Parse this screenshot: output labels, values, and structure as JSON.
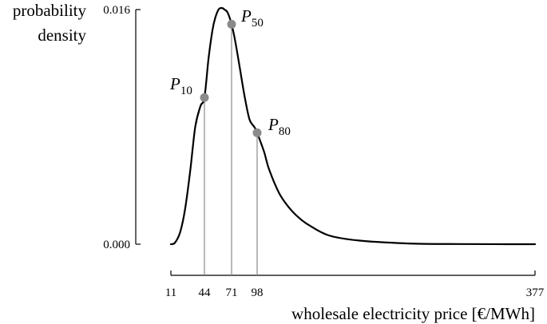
{
  "chart_data": {
    "type": "line",
    "ylabel_lines": [
      "probability",
      "density"
    ],
    "xlabel": "wholesale electricity price [€/MWh]",
    "xlim": [
      11,
      377
    ],
    "ylim": [
      0,
      0.016
    ],
    "x_ticks": [
      "11",
      "44",
      "71",
      "98",
      "377"
    ],
    "y_ticks": [
      "0.016",
      "0.000"
    ],
    "series": [
      {
        "x": [
          11,
          15,
          20,
          25,
          30,
          35,
          40,
          44,
          48,
          52,
          55,
          58,
          60,
          62,
          64,
          67,
          71,
          75,
          80,
          85,
          90,
          95,
          98,
          105,
          110,
          120,
          130,
          140,
          150,
          170,
          200,
          250,
          300,
          377
        ],
        "y": [
          0.0,
          0.0001,
          0.0008,
          0.0024,
          0.005,
          0.008,
          0.0094,
          0.01,
          0.0126,
          0.0146,
          0.0155,
          0.016,
          0.0161,
          0.0161,
          0.016,
          0.0158,
          0.015,
          0.0138,
          0.0119,
          0.01,
          0.0085,
          0.008,
          0.0076,
          0.0063,
          0.0051,
          0.0035,
          0.0025,
          0.0018,
          0.0013,
          0.0006,
          0.00025,
          5e-05,
          1e-05,
          0.0
        ]
      }
    ],
    "markers": [
      {
        "letter": "P",
        "sub": "10",
        "x": 44,
        "y": 0.01
      },
      {
        "letter": "P",
        "sub": "50",
        "x": 71,
        "y": 0.015
      },
      {
        "letter": "P",
        "sub": "80",
        "x": 98,
        "y": 0.0076
      }
    ],
    "grid": false,
    "line_color": "#000000",
    "marker_color": "#8a8a8a"
  }
}
